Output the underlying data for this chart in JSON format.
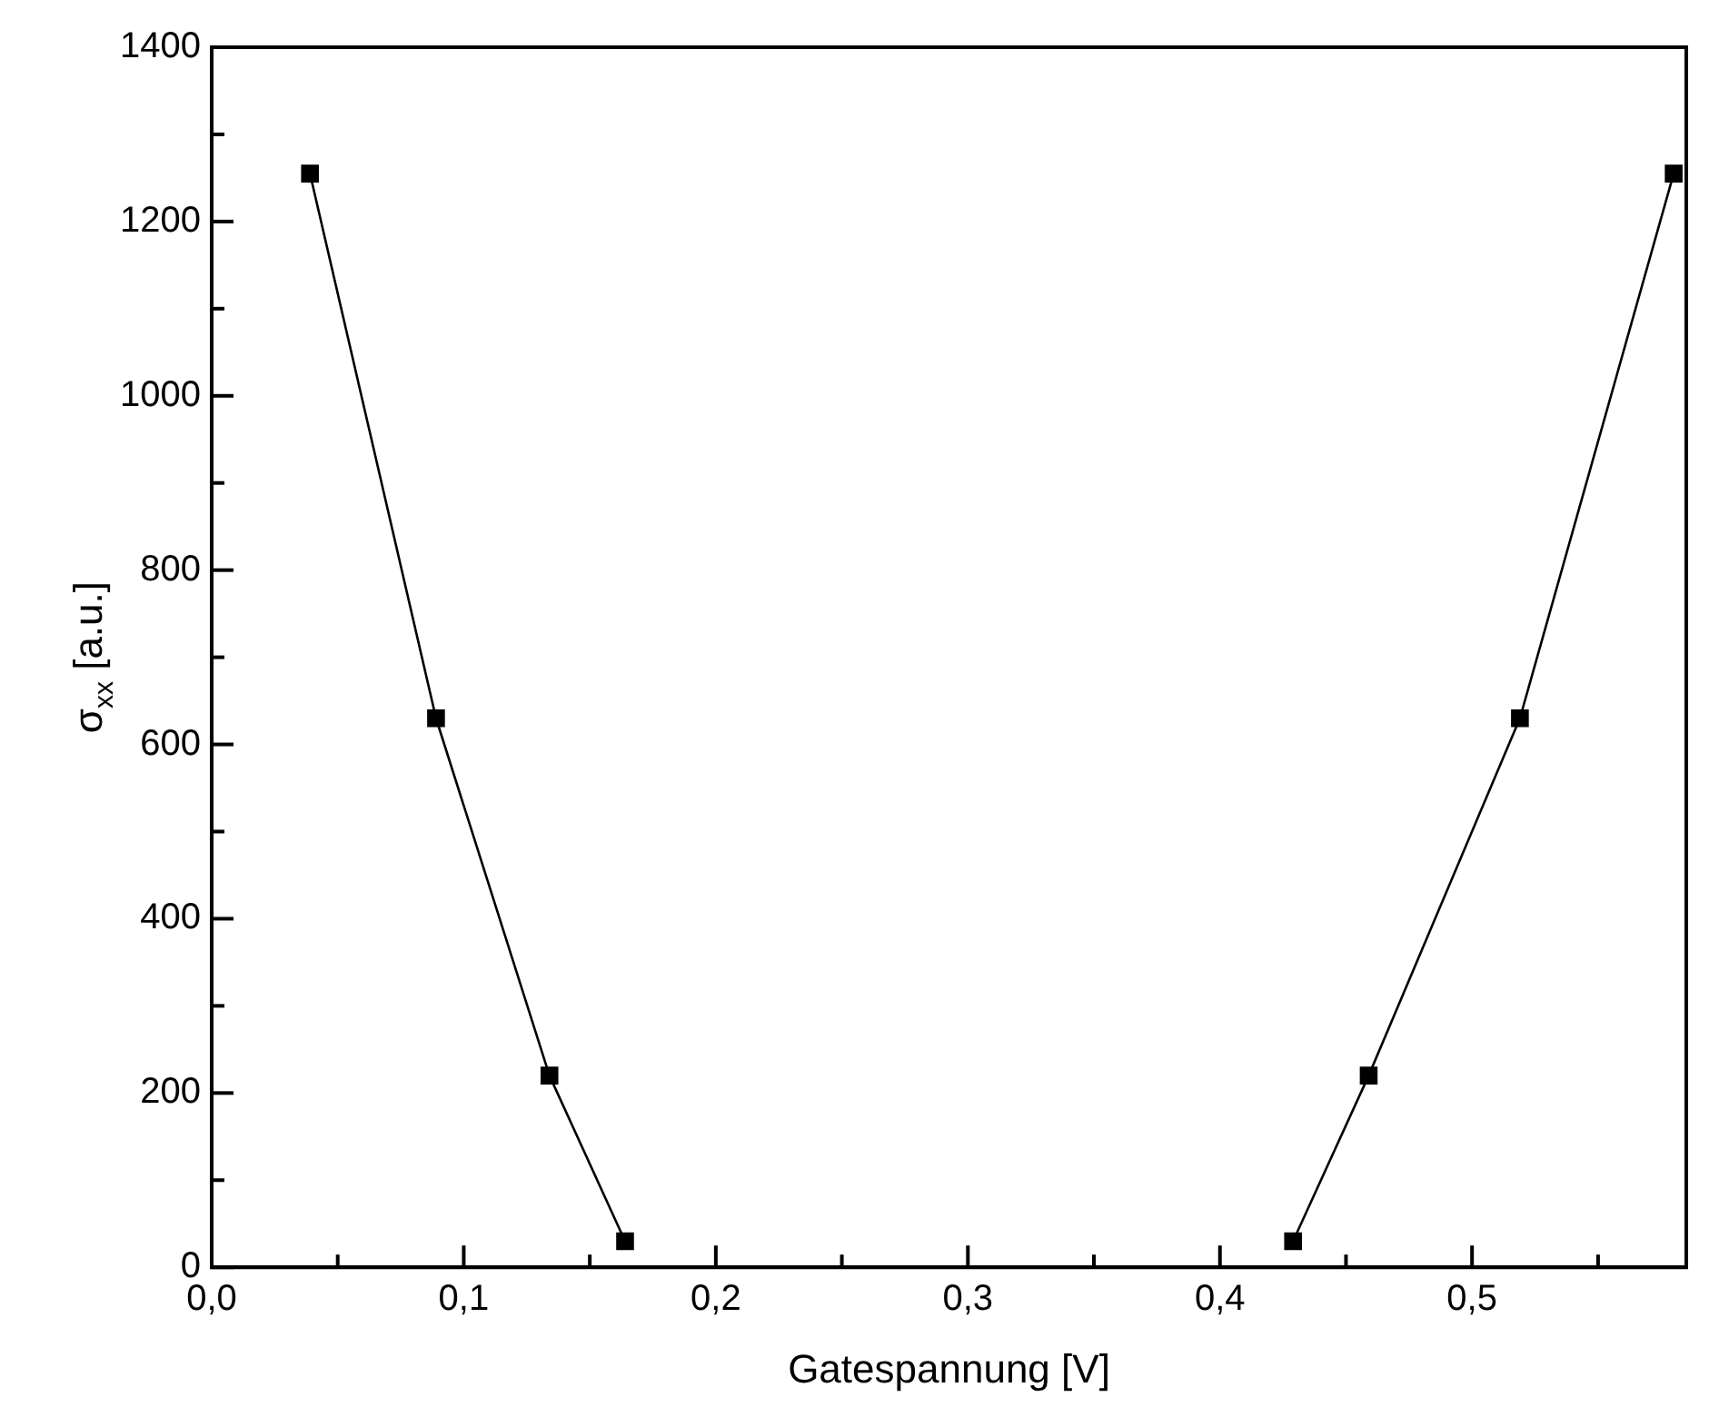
{
  "chart_data": {
    "type": "line",
    "xlabel": "Gatespannung [V]",
    "ylabel": "σ$_{xx}$ [a.u.]",
    "series": [
      {
        "color": "#000000",
        "x": [
          0.039,
          0.089,
          0.134,
          0.164
        ],
        "values": [
          1255,
          630,
          220,
          30
        ]
      },
      {
        "color": "#000000",
        "x": [
          0.429,
          0.459,
          0.519,
          0.58
        ],
        "values": [
          30,
          220,
          630,
          1255
        ]
      }
    ],
    "xlim": [
      0,
      0.585
    ],
    "xticks": [
      {
        "value": 0,
        "label": "0,0"
      },
      {
        "value": 0.05,
        "label": null
      },
      {
        "value": 0.1,
        "label": "0,1"
      },
      {
        "value": 0.15,
        "label": null
      },
      {
        "value": 0.2,
        "label": "0,2"
      },
      {
        "value": 0.25,
        "label": null
      },
      {
        "value": 0.3,
        "label": "0,3"
      },
      {
        "value": 0.35,
        "label": null
      },
      {
        "value": 0.4,
        "label": "0,4"
      },
      {
        "value": 0.45,
        "label": null
      },
      {
        "value": 0.5,
        "label": "0,5"
      },
      {
        "value": 0.55,
        "label": null
      }
    ],
    "ylim": [
      0,
      1400
    ],
    "yticks": [
      0,
      {
        "value": 100,
        "label": null
      },
      200,
      {
        "value": 300,
        "label": null
      },
      400,
      {
        "value": 500,
        "label": null
      },
      600,
      {
        "value": 700,
        "label": null
      },
      800,
      {
        "value": 900,
        "label": null
      },
      1000,
      {
        "value": 1100,
        "label": null
      },
      1200,
      {
        "value": 1300,
        "label": null
      },
      1400
    ],
    "grid": false,
    "legend": false,
    "marker": "square",
    "line_style": "solid"
  }
}
